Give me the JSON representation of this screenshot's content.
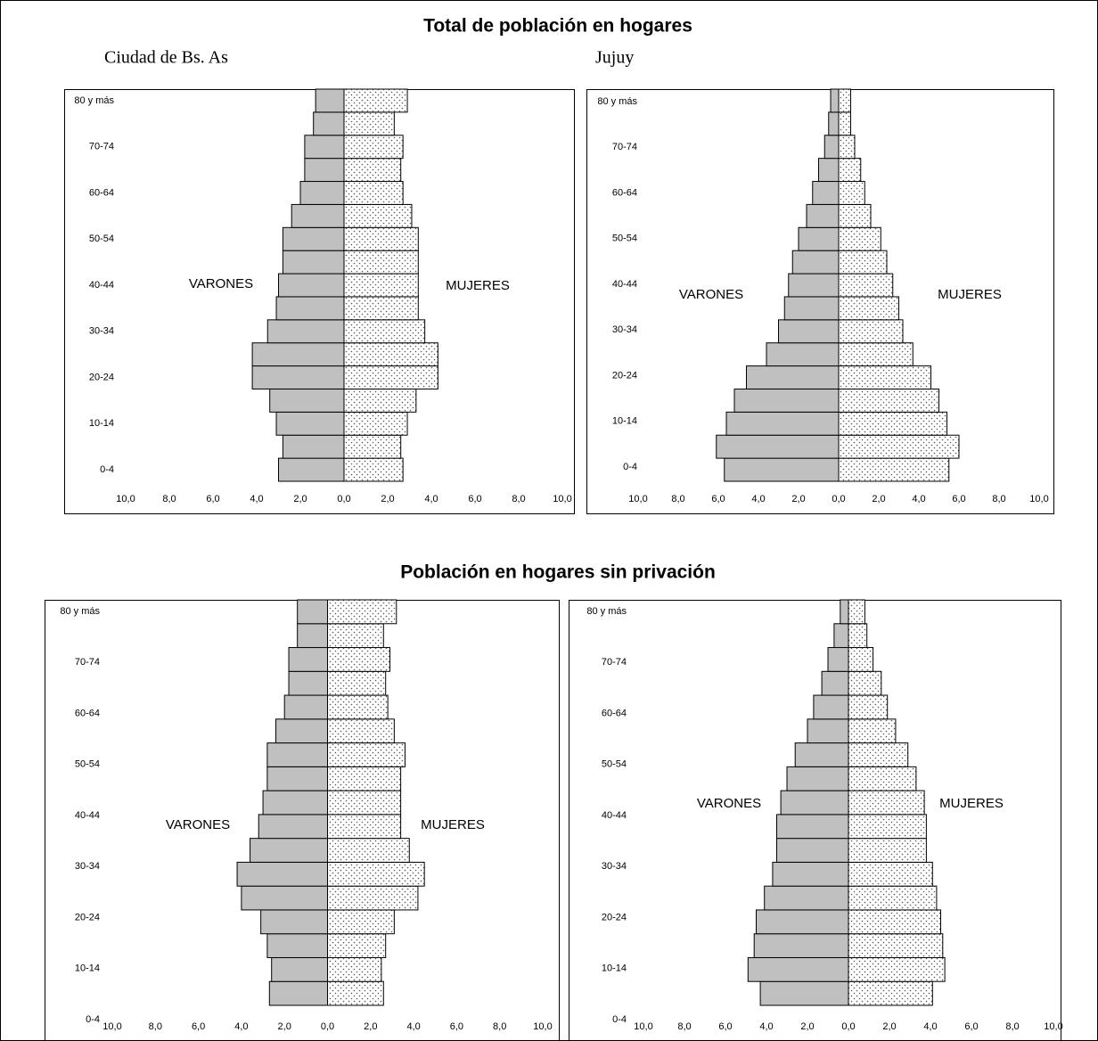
{
  "sections": [
    "Total de población en hogares",
    "Población en hogares sin privación"
  ],
  "chart_data": [
    {
      "type": "pyramid",
      "title": "Ciudad de Bs. As",
      "categories": [
        "0-4",
        null,
        "10-14",
        null,
        "20-24",
        null,
        "30-34",
        null,
        "40-44",
        null,
        "50-54",
        null,
        "60-64",
        null,
        "70-74",
        null,
        "80 y más"
      ],
      "series": [
        {
          "name": "VARONES",
          "color": "#c0c0c0",
          "values": [
            -3.0,
            -2.8,
            -3.1,
            -3.4,
            -4.2,
            -4.2,
            -3.5,
            -3.1,
            -3.0,
            -2.8,
            -2.8,
            -2.4,
            -2.0,
            -1.8,
            -1.8,
            -1.4,
            -1.3
          ]
        },
        {
          "name": "MUJERES",
          "color": "#ffffff",
          "pattern": "dots",
          "values": [
            2.7,
            2.6,
            2.9,
            3.3,
            4.3,
            4.3,
            3.7,
            3.4,
            3.4,
            3.4,
            3.4,
            3.1,
            2.7,
            2.6,
            2.7,
            2.3,
            2.9
          ]
        }
      ],
      "xlim": [
        -10,
        10
      ],
      "xticks": [
        {
          "value": -10,
          "label": "10,0"
        },
        {
          "value": -8,
          "label": "8,0"
        },
        {
          "value": -6,
          "label": "6,0"
        },
        {
          "value": -4,
          "label": "4,0"
        },
        {
          "value": -2,
          "label": "2,0"
        },
        {
          "value": 0,
          "label": "0,0"
        },
        {
          "value": 2,
          "label": "2,0"
        },
        {
          "value": 4,
          "label": "4,0"
        },
        {
          "value": 6,
          "label": "6,0"
        },
        {
          "value": 8,
          "label": "8,0"
        },
        {
          "value": 10,
          "label": "10,0"
        }
      ]
    },
    {
      "type": "pyramid",
      "title": "Jujuy",
      "categories": [
        "0-4",
        null,
        "10-14",
        null,
        "20-24",
        null,
        "30-34",
        null,
        "40-44",
        null,
        "50-54",
        null,
        "60-64",
        null,
        "70-74",
        null,
        "80 y más"
      ],
      "series": [
        {
          "name": "VARONES",
          "color": "#c0c0c0",
          "values": [
            -5.7,
            -6.1,
            -5.6,
            -5.2,
            -4.6,
            -3.6,
            -3.0,
            -2.7,
            -2.5,
            -2.3,
            -2.0,
            -1.6,
            -1.3,
            -1.0,
            -0.7,
            -0.5,
            -0.4
          ]
        },
        {
          "name": "MUJERES",
          "color": "#ffffff",
          "pattern": "dots",
          "values": [
            5.5,
            6.0,
            5.4,
            5.0,
            4.6,
            3.7,
            3.2,
            3.0,
            2.7,
            2.4,
            2.1,
            1.6,
            1.3,
            1.1,
            0.8,
            0.6,
            0.6
          ]
        }
      ],
      "xlim": [
        -10,
        10
      ],
      "xticks": [
        {
          "value": -10,
          "label": "10,0"
        },
        {
          "value": -8,
          "label": "8,0"
        },
        {
          "value": -6,
          "label": "6,0"
        },
        {
          "value": -4,
          "label": "4,0"
        },
        {
          "value": -2,
          "label": "2,0"
        },
        {
          "value": 0,
          "label": "0,0"
        },
        {
          "value": 2,
          "label": "2,0"
        },
        {
          "value": 4,
          "label": "4,0"
        },
        {
          "value": 6,
          "label": "6,0"
        },
        {
          "value": 8,
          "label": "8,0"
        },
        {
          "value": 10,
          "label": "10,0"
        }
      ]
    },
    {
      "type": "pyramid",
      "categories": [
        "0-4",
        null,
        "10-14",
        null,
        "20-24",
        null,
        "30-34",
        null,
        "40-44",
        null,
        "50-54",
        null,
        "60-64",
        null,
        "70-74",
        null,
        "80 y más"
      ],
      "series": [
        {
          "name": "VARONES",
          "color": "#c0c0c0",
          "values": [
            -2.7,
            -2.6,
            -2.8,
            -3.1,
            -4.0,
            -4.2,
            -3.6,
            -3.2,
            -3.0,
            -2.8,
            -2.8,
            -2.4,
            -2.0,
            -1.8,
            -1.8,
            -1.4,
            -1.4
          ]
        },
        {
          "name": "MUJERES",
          "color": "#ffffff",
          "pattern": "dots",
          "values": [
            2.6,
            2.5,
            2.7,
            3.1,
            4.2,
            4.5,
            3.8,
            3.4,
            3.4,
            3.4,
            3.6,
            3.1,
            2.8,
            2.7,
            2.9,
            2.6,
            3.2
          ]
        }
      ],
      "xlim": [
        -10,
        10
      ],
      "xticks": [
        {
          "value": -10,
          "label": "10,0"
        },
        {
          "value": -8,
          "label": "8,0"
        },
        {
          "value": -6,
          "label": "6,0"
        },
        {
          "value": -4,
          "label": "4,0"
        },
        {
          "value": -2,
          "label": "2,0"
        },
        {
          "value": 0,
          "label": "0,0"
        },
        {
          "value": 2,
          "label": "2,0"
        },
        {
          "value": 4,
          "label": "4,0"
        },
        {
          "value": 6,
          "label": "6,0"
        },
        {
          "value": 8,
          "label": "8,0"
        },
        {
          "value": 10,
          "label": "10,0"
        }
      ]
    },
    {
      "type": "pyramid",
      "categories": [
        "0-4",
        null,
        "10-14",
        null,
        "20-24",
        null,
        "30-34",
        null,
        "40-44",
        null,
        "50-54",
        null,
        "60-64",
        null,
        "70-74",
        null,
        "80 y más"
      ],
      "series": [
        {
          "name": "VARONES",
          "color": "#c0c0c0",
          "values": [
            -4.3,
            -4.9,
            -4.6,
            -4.5,
            -4.1,
            -3.7,
            -3.5,
            -3.5,
            -3.3,
            -3.0,
            -2.6,
            -2.0,
            -1.7,
            -1.3,
            -1.0,
            -0.7,
            -0.4
          ]
        },
        {
          "name": "MUJERES",
          "color": "#ffffff",
          "pattern": "dots",
          "values": [
            4.1,
            4.7,
            4.6,
            4.5,
            4.3,
            4.1,
            3.8,
            3.8,
            3.7,
            3.3,
            2.9,
            2.3,
            1.9,
            1.6,
            1.2,
            0.9,
            0.8
          ]
        }
      ],
      "xlim": [
        -10,
        10
      ],
      "xticks": [
        {
          "value": -10,
          "label": "10,0"
        },
        {
          "value": -8,
          "label": "8,0"
        },
        {
          "value": -6,
          "label": "6,0"
        },
        {
          "value": -4,
          "label": "4,0"
        },
        {
          "value": -2,
          "label": "2,0"
        },
        {
          "value": 0,
          "label": "0,0"
        },
        {
          "value": 2,
          "label": "2,0"
        },
        {
          "value": 4,
          "label": "4,0"
        },
        {
          "value": 6,
          "label": "6,0"
        },
        {
          "value": 8,
          "label": "8,0"
        },
        {
          "value": 10,
          "label": "10,0"
        }
      ]
    }
  ]
}
